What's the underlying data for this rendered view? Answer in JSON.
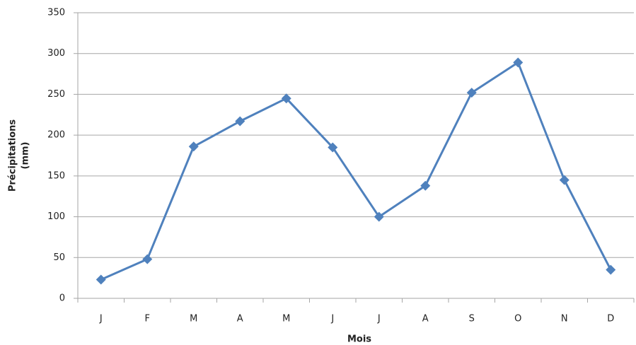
{
  "chart_data": {
    "type": "line",
    "categories": [
      "J",
      "F",
      "M",
      "A",
      "M",
      "J",
      "J",
      "A",
      "S",
      "O",
      "N",
      "D"
    ],
    "series": [
      {
        "name": "Précipitations",
        "color": "#4f81bd",
        "values": [
          23,
          48,
          186,
          217,
          245,
          185,
          100,
          138,
          252,
          289,
          145,
          35
        ]
      }
    ],
    "x_label": "Mois",
    "y_label": [
      "Précipitations",
      "(mm)"
    ],
    "ylim": [
      0,
      350
    ],
    "yticks": [
      0,
      50,
      100,
      150,
      200,
      250,
      300,
      350
    ],
    "grid": true
  }
}
